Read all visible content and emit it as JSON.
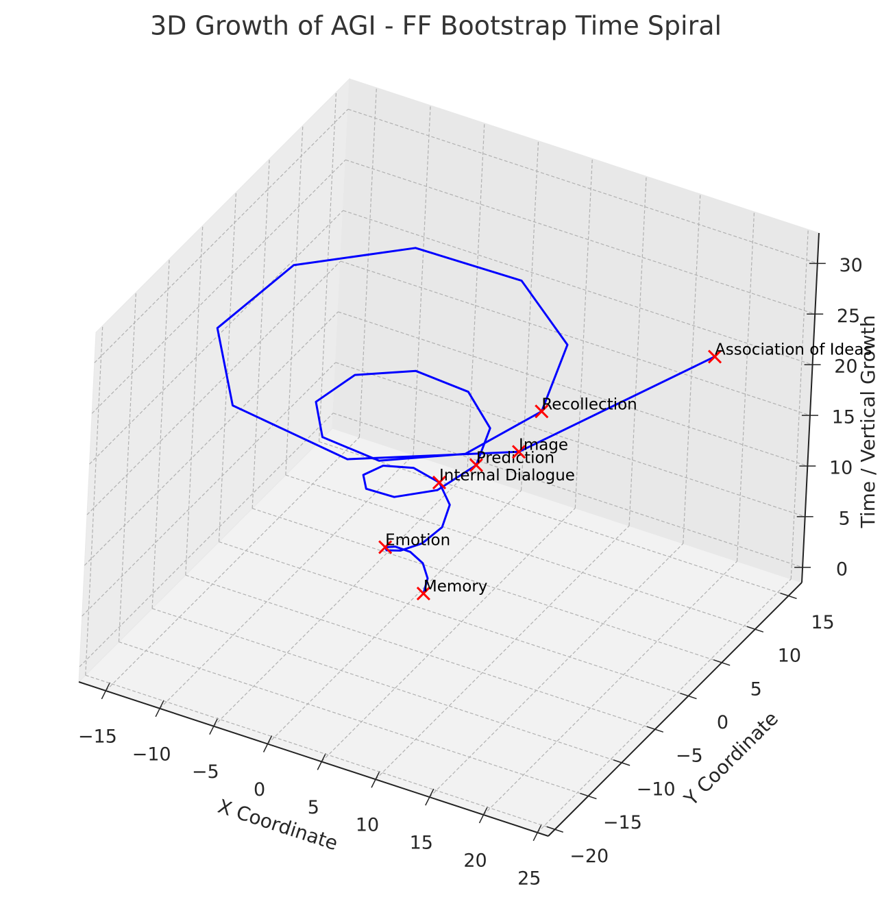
{
  "chart_data": {
    "type": "line3d",
    "title": "3D Growth of AGI - FF Bootstrap Time Spiral",
    "xlabel": "X Coordinate",
    "ylabel": "Y Coordinate",
    "zlabel": "Time / Vertical Growth",
    "xlim": [
      -17.5,
      26
    ],
    "ylim": [
      -21,
      17
    ],
    "zlim": [
      -1.5,
      33
    ],
    "xticks": [
      {
        "value": -15,
        "label": "−15"
      },
      {
        "value": -10,
        "label": "−10"
      },
      {
        "value": -5,
        "label": "−5"
      },
      0,
      5,
      10,
      15,
      20,
      25
    ],
    "yticks": [
      {
        "value": -20,
        "label": "−20"
      },
      {
        "value": -15,
        "label": "−15"
      },
      {
        "value": -10,
        "label": "−10"
      },
      {
        "value": -5,
        "label": "−5"
      },
      0,
      5,
      10,
      15
    ],
    "zticks": [
      0,
      5,
      10,
      15,
      20,
      25,
      30
    ],
    "grid": true,
    "series": [
      {
        "color": "#0000ff",
        "x": [
          1.38,
          1.14,
          0.27,
          -0.88,
          -1.77,
          -1.9,
          -1.07,
          0.44,
          1.98,
          2.76,
          2.25,
          0.49,
          -1.81,
          -3.56,
          -3.77,
          -2.08,
          0.96,
          4.02,
          5.51,
          4.42,
          0.88,
          -3.7,
          -7.16,
          -7.48,
          -4.04,
          2.08,
          8.14,
          11.02,
          8.7,
          1.55,
          -7.61,
          -14.38,
          -14.8,
          -7.81,
          4.47,
          16.43,
          24
        ],
        "y": [
          0,
          0.96,
          1.59,
          1.5,
          0.63,
          -0.71,
          -1.91,
          -2.33,
          -1.61,
          0.05,
          1.96,
          3.18,
          2.98,
          1.2,
          -1.49,
          -3.85,
          -4.63,
          -3.15,
          0.19,
          3.98,
          6.37,
          5.87,
          2.27,
          -3.11,
          -7.76,
          -9.22,
          -6.15,
          0.56,
          8.12,
          12.76,
          11.62,
          4.26,
          -6.56,
          -15.63,
          -18.35,
          -12.07,
          5
        ],
        "z": [
          0,
          0.78,
          1.55,
          2.33,
          3.11,
          3.89,
          4.66,
          5.44,
          6.22,
          6.99,
          7.77,
          8.55,
          9.32,
          10.1,
          10.88,
          11.66,
          12.43,
          13.21,
          13.99,
          14.76,
          15.54,
          16.32,
          17.09,
          17.87,
          18.65,
          19.43,
          20.2,
          20.98,
          21.76,
          22.53,
          23.31,
          24.09,
          24.86,
          25.64,
          26.42,
          27.2,
          28
        ]
      }
    ],
    "points": {
      "color": "#ff0000",
      "labels": [
        "Memory",
        "Emotion",
        "Internal Dialogue",
        "Prediction",
        "Recollection",
        "Image",
        "Association of Ideas"
      ],
      "x": [
        1.38,
        -1.9,
        0.49,
        5.51,
        11.02,
        16.43,
        24
      ],
      "y": [
        0,
        -0.71,
        3.18,
        0.19,
        0.56,
        -12.07,
        5
      ],
      "z": [
        0,
        3.89,
        8.55,
        13.99,
        20.98,
        27.2,
        28
      ]
    }
  }
}
